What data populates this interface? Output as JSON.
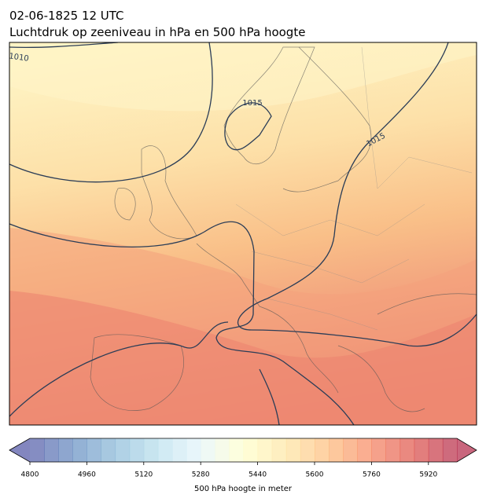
{
  "map": {
    "title": "02-06-1825 12 UTC",
    "subtitle": "Luchtdruk op zeeniveau in hPa en 500 hPa hoogte",
    "contour_labels": [
      "1010",
      "1015",
      "1015"
    ],
    "colorbar": {
      "range": [
        4800,
        6000
      ],
      "step": 40,
      "ticks": [
        4800,
        4960,
        5120,
        5280,
        5440,
        5600,
        5760,
        5920
      ],
      "label": "500 hPa hoogte in meter",
      "colors": [
        "#313695",
        "#4575b4",
        "#74add1",
        "#abd9e9",
        "#e0f3f8",
        "#ffffbf",
        "#fee090",
        "#fdae61",
        "#f46d43",
        "#d73027",
        "#a50026"
      ],
      "opacity": 0.6
    }
  }
}
